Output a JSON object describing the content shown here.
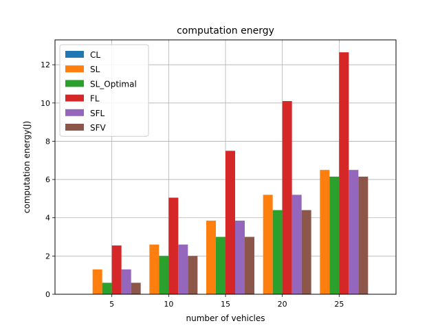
{
  "chart_data": {
    "type": "bar",
    "title": "computation energy",
    "xlabel": "number of vehicles",
    "ylabel": "computation energy(J)",
    "categories": [
      "5",
      "10",
      "15",
      "20",
      "25"
    ],
    "ylim": [
      0,
      13.3
    ],
    "yticks": [
      0,
      2,
      4,
      6,
      8,
      10,
      12
    ],
    "ytick_labels": [
      "0",
      "2",
      "4",
      "6",
      "8",
      "10",
      "12"
    ],
    "grid": true,
    "legend_position": "top-left",
    "series": [
      {
        "name": "CL",
        "color": "#1f77b4",
        "values": [
          0,
          0,
          0,
          0,
          0
        ]
      },
      {
        "name": "SL",
        "color": "#ff7f0e",
        "values": [
          1.3,
          2.6,
          3.85,
          5.2,
          6.5
        ]
      },
      {
        "name": "SL_Optimal",
        "color": "#2ca02c",
        "values": [
          0.6,
          2.0,
          3.0,
          4.4,
          6.15
        ]
      },
      {
        "name": "FL",
        "color": "#d62728",
        "values": [
          2.55,
          5.05,
          7.5,
          10.1,
          12.65
        ]
      },
      {
        "name": "SFL",
        "color": "#9467bd",
        "values": [
          1.3,
          2.6,
          3.85,
          5.2,
          6.5
        ]
      },
      {
        "name": "SFV",
        "color": "#8c564b",
        "values": [
          0.6,
          2.0,
          3.0,
          4.4,
          6.15
        ]
      }
    ]
  }
}
